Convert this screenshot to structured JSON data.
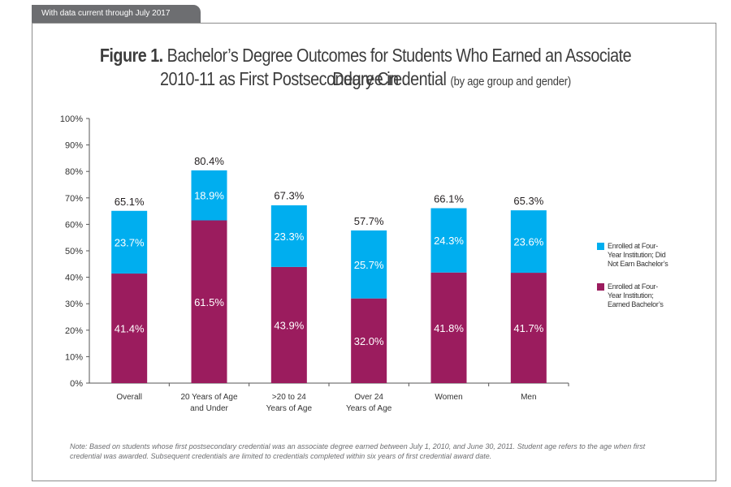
{
  "header": {
    "tab_text": "With data current through July 2017"
  },
  "figure": {
    "label": "Figure 1.",
    "title_line1": "Bachelor’s Degree Outcomes for Students Who Earned an Associate Degree in",
    "title_line2": "2010-11 as First Postsecondary Credential",
    "subtitle": "(by age group and gender)"
  },
  "chart_data": {
    "type": "bar",
    "stacked": true,
    "categories": [
      [
        "Overall"
      ],
      [
        "20 Years of Age",
        "and Under"
      ],
      [
        ">20 to 24",
        "Years of Age"
      ],
      [
        "Over 24",
        "Years of Age"
      ],
      [
        "Women"
      ],
      [
        "Men"
      ]
    ],
    "series": [
      {
        "name": "Enrolled at Four-Year Institution; Earned Bachelor’s",
        "legend_lines": [
          "Enrolled at Four-",
          "Year Institution;",
          "Earned Bachelor’s"
        ],
        "color": "#9b1c5e",
        "values": [
          41.4,
          61.5,
          43.9,
          32.0,
          41.8,
          41.7
        ],
        "labels": [
          "41.4%",
          "61.5%",
          "43.9%",
          "32.0%",
          "41.8%",
          "41.7%"
        ]
      },
      {
        "name": "Enrolled at Four-Year Institution; Did Not Earn Bachelor’s",
        "legend_lines": [
          "Enrolled at Four-",
          "Year Institution; Did",
          "Not Earn Bachelor’s"
        ],
        "color": "#00aeef",
        "values": [
          23.7,
          18.9,
          23.3,
          25.7,
          24.3,
          23.6
        ],
        "labels": [
          "23.7%",
          "18.9%",
          "23.3%",
          "25.7%",
          "24.3%",
          "23.6%"
        ]
      }
    ],
    "totals": [
      65.1,
      80.4,
      67.3,
      57.7,
      66.1,
      65.3
    ],
    "total_labels": [
      "65.1%",
      "80.4%",
      "67.3%",
      "57.7%",
      "66.1%",
      "65.3%"
    ],
    "ylim": [
      0,
      100
    ],
    "yticks": [
      "0%",
      "10%",
      "20%",
      "30%",
      "40%",
      "50%",
      "60%",
      "70%",
      "80%",
      "90%",
      "100%"
    ],
    "grid": false,
    "legend_position": "right"
  },
  "note": "Note: Based on students whose first postsecondary credential was an associate degree earned between July 1, 2010, and June 30, 2011. Student age refers to the age when first credential was awarded. Subsequent credentials are limited to credentials completed within six years of first credential award date."
}
